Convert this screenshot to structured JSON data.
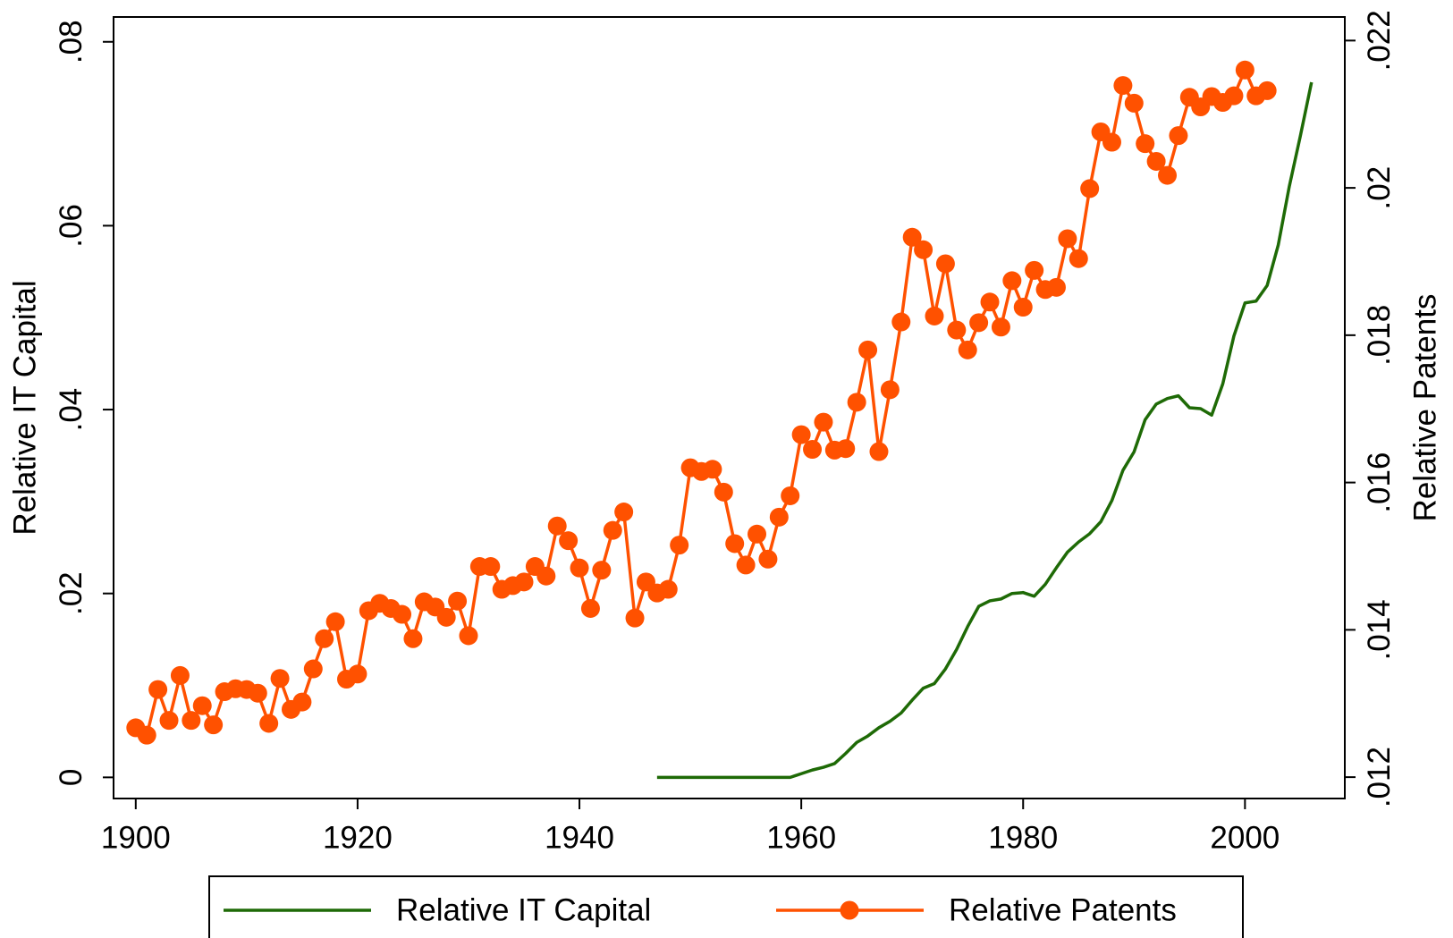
{
  "chart_data": {
    "type": "line",
    "ylabel": "Relative IT Capital",
    "y2label": "Relative Patents",
    "xlim": [
      1898,
      2009
    ],
    "xticks": [
      1900,
      1920,
      1940,
      1960,
      1980,
      2000
    ],
    "ylim": [
      -0.0023,
      0.0827
    ],
    "yticks": [
      0,
      {
        "value": 0.02,
        "label": ".02"
      },
      {
        "value": 0.04,
        "label": ".04"
      },
      {
        "value": 0.06,
        "label": ".06"
      },
      {
        "value": 0.08,
        "label": ".08"
      }
    ],
    "y2lim": [
      0.01171,
      0.02232
    ],
    "y2ticks": [
      {
        "value": 0.012,
        "label": ".012"
      },
      {
        "value": 0.014,
        "label": ".014"
      },
      {
        "value": 0.016,
        "label": ".016"
      },
      {
        "value": 0.018,
        "label": ".018"
      },
      {
        "value": 0.02,
        "label": ".02"
      },
      {
        "value": 0.022,
        "label": ".022"
      }
    ],
    "x": [
      1900,
      1901,
      1902,
      1903,
      1904,
      1905,
      1906,
      1907,
      1908,
      1909,
      1910,
      1911,
      1912,
      1913,
      1914,
      1915,
      1916,
      1917,
      1918,
      1919,
      1920,
      1921,
      1922,
      1923,
      1924,
      1925,
      1926,
      1927,
      1928,
      1929,
      1930,
      1931,
      1932,
      1933,
      1934,
      1935,
      1936,
      1937,
      1938,
      1939,
      1940,
      1941,
      1942,
      1943,
      1944,
      1945,
      1946,
      1947,
      1948,
      1949,
      1950,
      1951,
      1952,
      1953,
      1954,
      1955,
      1956,
      1957,
      1958,
      1959,
      1960,
      1961,
      1962,
      1963,
      1964,
      1965,
      1966,
      1967,
      1968,
      1969,
      1970,
      1971,
      1972,
      1973,
      1974,
      1975,
      1976,
      1977,
      1978,
      1979,
      1980,
      1981,
      1982,
      1983,
      1984,
      1985,
      1986,
      1987,
      1988,
      1989,
      1990,
      1991,
      1992,
      1993,
      1994,
      1995,
      1996,
      1997,
      1998,
      1999,
      2000,
      2001,
      2002,
      2003,
      2004,
      2005,
      2006
    ],
    "legend": "bottom",
    "series": [
      {
        "name": "Relative IT Capital",
        "color": "#1e6a06",
        "axis": "y",
        "marker": false,
        "values": [
          null,
          null,
          null,
          null,
          null,
          null,
          null,
          null,
          null,
          null,
          null,
          null,
          null,
          null,
          null,
          null,
          null,
          null,
          null,
          null,
          null,
          null,
          null,
          null,
          null,
          null,
          null,
          null,
          null,
          null,
          null,
          null,
          null,
          null,
          null,
          null,
          null,
          null,
          null,
          null,
          null,
          null,
          null,
          null,
          null,
          null,
          null,
          0,
          0,
          0,
          0,
          0,
          0,
          0,
          0,
          0,
          0,
          0,
          0,
          0,
          0.0004,
          0.0008,
          0.0011,
          0.0015,
          0.0026,
          0.0038,
          0.0045,
          0.0054,
          0.0061,
          0.007,
          0.0084,
          0.0097,
          0.0102,
          0.0118,
          0.0139,
          0.0164,
          0.0186,
          0.0192,
          0.0194,
          0.02,
          0.0201,
          0.0197,
          0.021,
          0.0228,
          0.0245,
          0.0256,
          0.0265,
          0.0278,
          0.0301,
          0.0334,
          0.0354,
          0.0389,
          0.0406,
          0.0412,
          0.0415,
          0.0402,
          0.0401,
          0.0394,
          0.0428,
          0.048,
          0.0516,
          0.0518,
          0.0535,
          0.0579,
          0.0643,
          0.0698,
          0.0756
        ]
      },
      {
        "name": "Relative Patents",
        "color": "#ff5100",
        "axis": "y2",
        "marker": true,
        "values": [
          0.01267,
          0.01257,
          0.01319,
          0.01277,
          0.01338,
          0.01277,
          0.01297,
          0.01271,
          0.01316,
          0.0132,
          0.01319,
          0.01314,
          0.01273,
          0.01334,
          0.01292,
          0.01302,
          0.01347,
          0.01388,
          0.01411,
          0.01333,
          0.0134,
          0.01426,
          0.01436,
          0.01429,
          0.01421,
          0.01388,
          0.01438,
          0.01431,
          0.01417,
          0.01439,
          0.01392,
          0.01486,
          0.01486,
          0.01455,
          0.0146,
          0.01465,
          0.01486,
          0.01473,
          0.01541,
          0.01521,
          0.01484,
          0.01429,
          0.01481,
          0.01535,
          0.0156,
          0.01416,
          0.01465,
          0.0145,
          0.01455,
          0.01515,
          0.0162,
          0.01615,
          0.01618,
          0.01587,
          0.01517,
          0.01488,
          0.0153,
          0.01496,
          0.01553,
          0.01582,
          0.01665,
          0.01645,
          0.01682,
          0.01644,
          0.01646,
          0.01709,
          0.0178,
          0.01642,
          0.01726,
          0.01818,
          0.01933,
          0.01916,
          0.01826,
          0.01897,
          0.01807,
          0.0178,
          0.01817,
          0.01845,
          0.01811,
          0.01874,
          0.01838,
          0.01888,
          0.01862,
          0.01865,
          0.01931,
          0.01904,
          0.01999,
          0.02076,
          0.02062,
          0.02139,
          0.02115,
          0.0206,
          0.02036,
          0.02017,
          0.02071,
          0.02123,
          0.0211,
          0.02124,
          0.02116,
          0.02125,
          0.0216,
          0.02125,
          0.02132,
          null,
          null,
          null,
          null
        ]
      }
    ]
  }
}
